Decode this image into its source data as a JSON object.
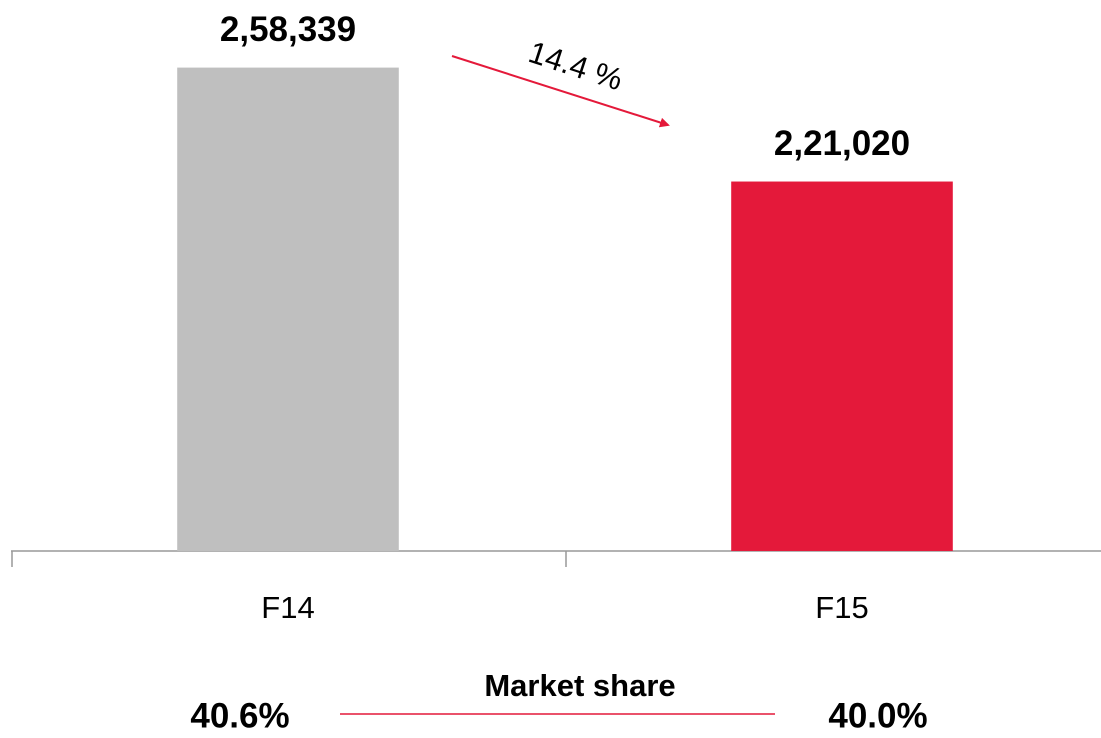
{
  "chart_data": {
    "type": "bar",
    "categories": [
      "F14",
      "F15"
    ],
    "values": [
      258339,
      221020
    ],
    "value_labels": [
      "2,58,339",
      "2,21,020"
    ],
    "colors": [
      "#bfbfbf",
      "#e4193a"
    ],
    "ylim": [
      100000,
      270000
    ],
    "change_annotation": "14.4 %",
    "market_share": {
      "title": "Market share",
      "labels": [
        "40.6%",
        "40.0%"
      ]
    }
  }
}
